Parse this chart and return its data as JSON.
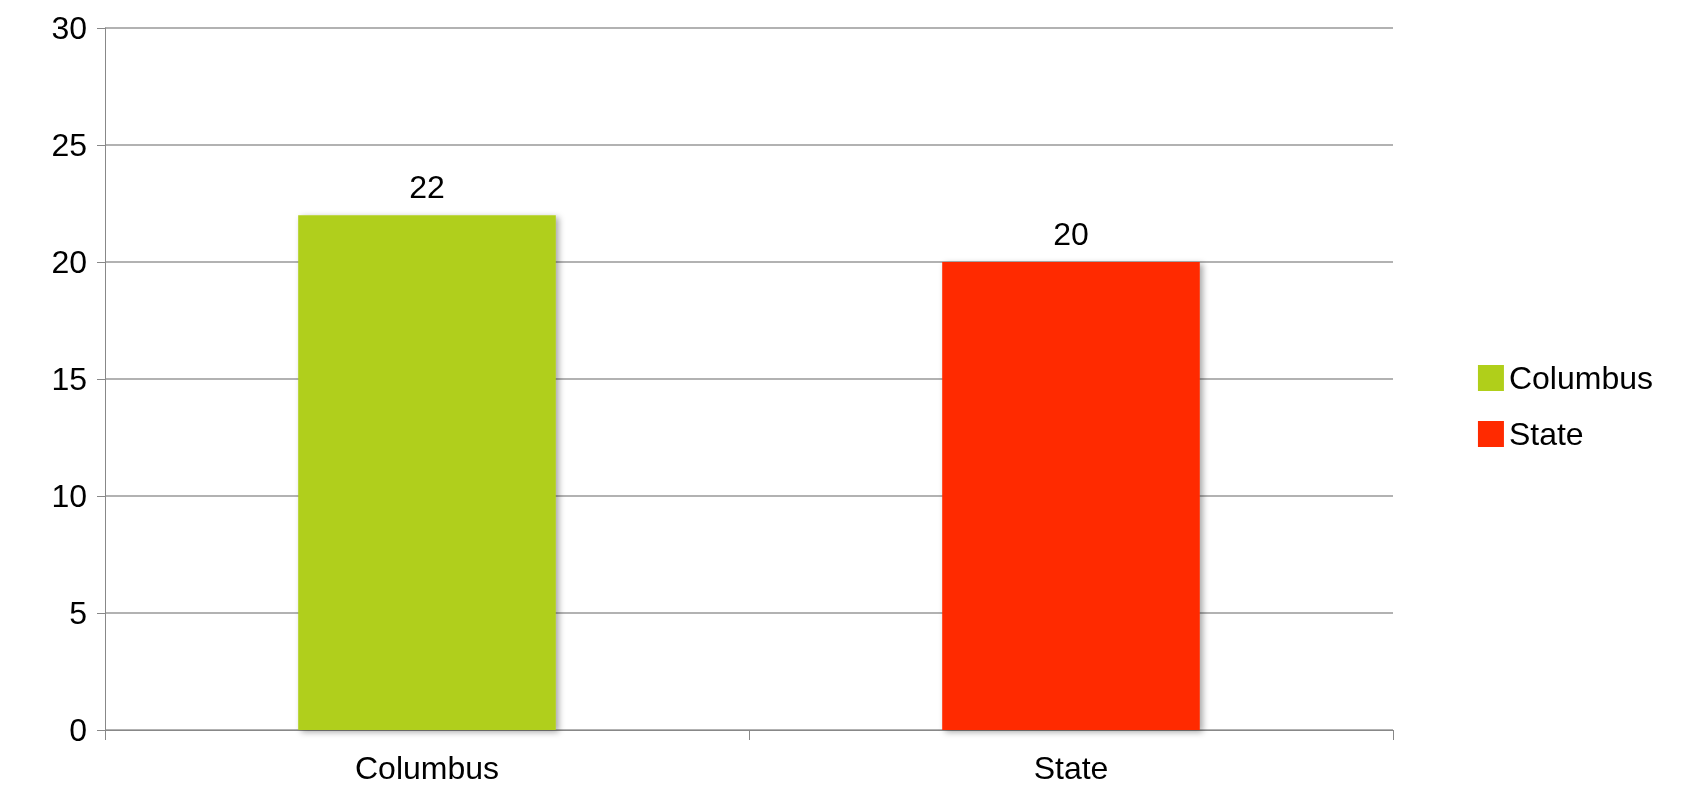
{
  "chart_data": {
    "type": "bar",
    "categories": [
      "Columbus",
      "State"
    ],
    "series": [
      {
        "name": "Columbus",
        "color": "#b0cf1a",
        "values": [
          22,
          null
        ]
      },
      {
        "name": "State",
        "color": "#ff2a00",
        "values": [
          null,
          20
        ]
      }
    ],
    "ylim": [
      0,
      30
    ],
    "yticks": [
      0,
      5,
      10,
      15,
      20,
      25,
      30
    ],
    "grid": "y",
    "legend": "right",
    "data_labels": true
  }
}
